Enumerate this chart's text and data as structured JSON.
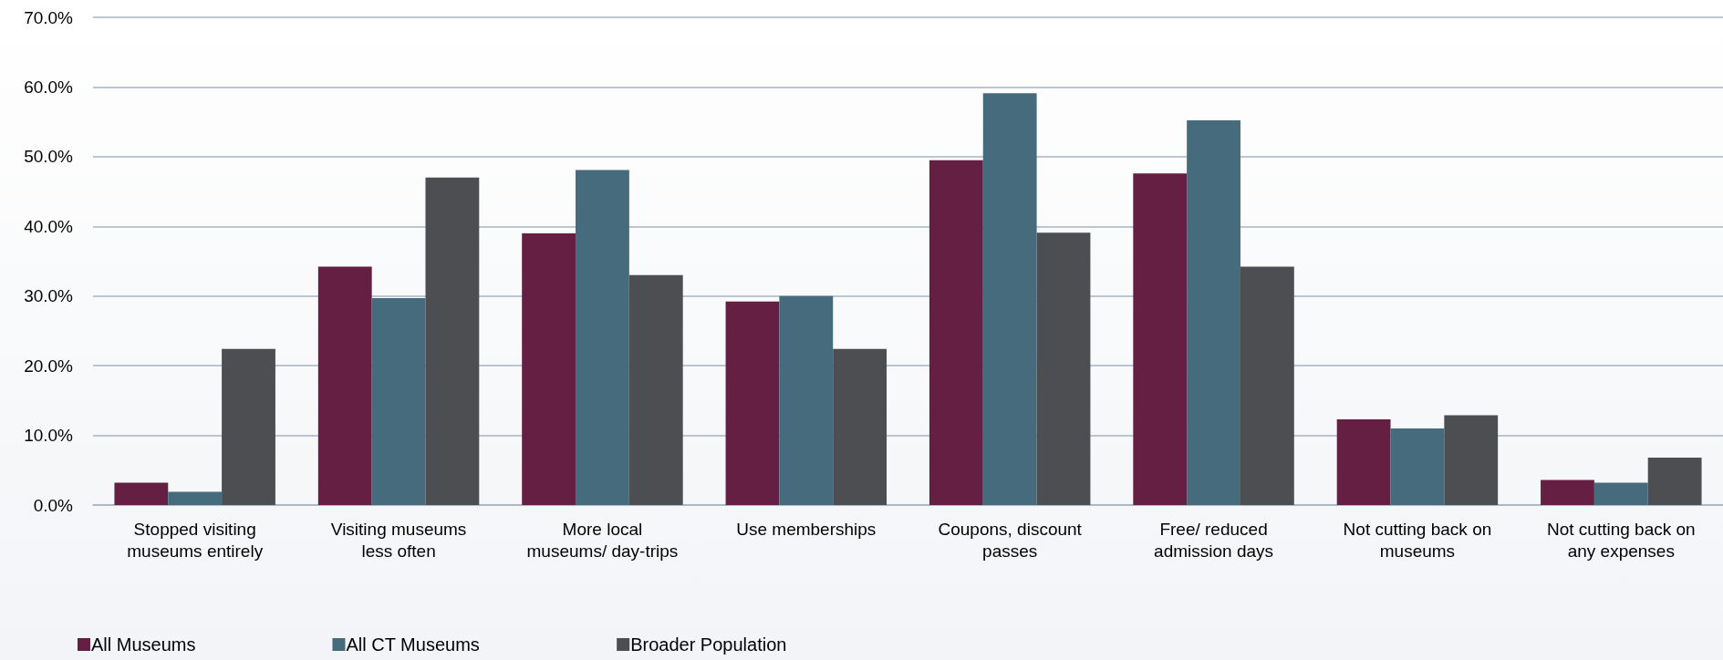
{
  "chart_data": {
    "type": "bar",
    "categories": [
      "Stopped visiting\nmuseums entirely",
      "Visiting museums\nless often",
      "More local\nmuseums/ day-trips",
      "Use memberships",
      "Coupons, discount\npasses",
      "Free/ reduced\nadmission days",
      "Not cutting back on\nmuseums",
      "Not cutting back on\nany expenses"
    ],
    "series": [
      {
        "name": "All Museums",
        "color": "#651f42",
        "values": [
          3.2,
          34.2,
          39.0,
          29.2,
          49.5,
          47.6,
          12.3,
          3.6
        ]
      },
      {
        "name": "All CT Museums",
        "color": "#466b7c",
        "values": [
          1.9,
          29.7,
          48.1,
          30.0,
          59.1,
          55.2,
          11.0,
          3.2
        ]
      },
      {
        "name": "Broader Population",
        "color": "#4d4e52",
        "values": [
          22.4,
          47.0,
          33.0,
          22.4,
          39.1,
          34.2,
          12.9,
          6.8
        ]
      }
    ],
    "ylim": [
      0,
      70
    ],
    "yticks": [
      {
        "value": 0,
        "label": "0.0%"
      },
      {
        "value": 10,
        "label": "10.0%"
      },
      {
        "value": 20,
        "label": "20.0%"
      },
      {
        "value": 30,
        "label": "30.0%"
      },
      {
        "value": 40,
        "label": "40.0%"
      },
      {
        "value": 50,
        "label": "50.0%"
      },
      {
        "value": 60,
        "label": "60.0%"
      },
      {
        "value": 70,
        "label": "70.0%"
      }
    ],
    "grid": "y",
    "legend": "bottom left"
  }
}
